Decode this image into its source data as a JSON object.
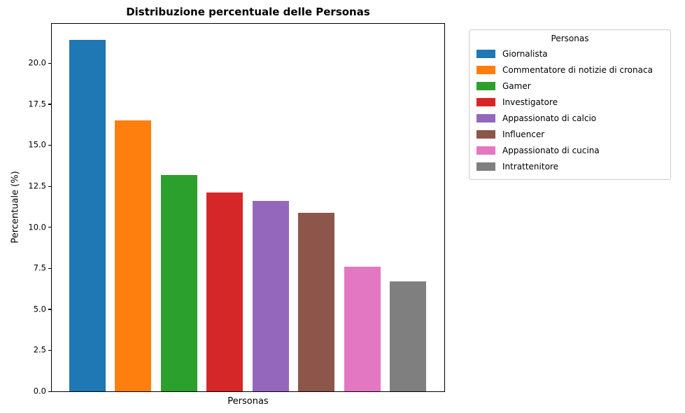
{
  "chart_data": {
    "type": "bar",
    "title": "Distribuzione percentuale delle Personas",
    "xlabel": "Personas",
    "ylabel": "Percentuale (%)",
    "categories": [
      "Giornalista",
      "Commentatore di notizie di cronaca",
      "Gamer",
      "Investigatore",
      "Appassionato di calcio",
      "Influencer",
      "Appassionato di cucina",
      "Intrattenitore"
    ],
    "values": [
      21.4,
      16.5,
      13.2,
      12.1,
      11.6,
      10.9,
      7.6,
      6.7
    ],
    "colors": [
      "#1f77b4",
      "#ff7f0e",
      "#2ca02c",
      "#d62728",
      "#9467bd",
      "#8c564b",
      "#e377c2",
      "#7f7f7f"
    ],
    "ylim": [
      0,
      22.4
    ],
    "yticks": [
      0,
      2.5,
      5,
      7.5,
      10,
      12.5,
      15,
      17.5,
      20
    ],
    "ytick_labels": [
      "0.0",
      "2.5",
      "5.0",
      "7.5",
      "10.0",
      "12.5",
      "15.0",
      "17.5",
      "20.0"
    ],
    "grid": false,
    "legend": {
      "title": "Personas",
      "position": "upper right"
    }
  }
}
